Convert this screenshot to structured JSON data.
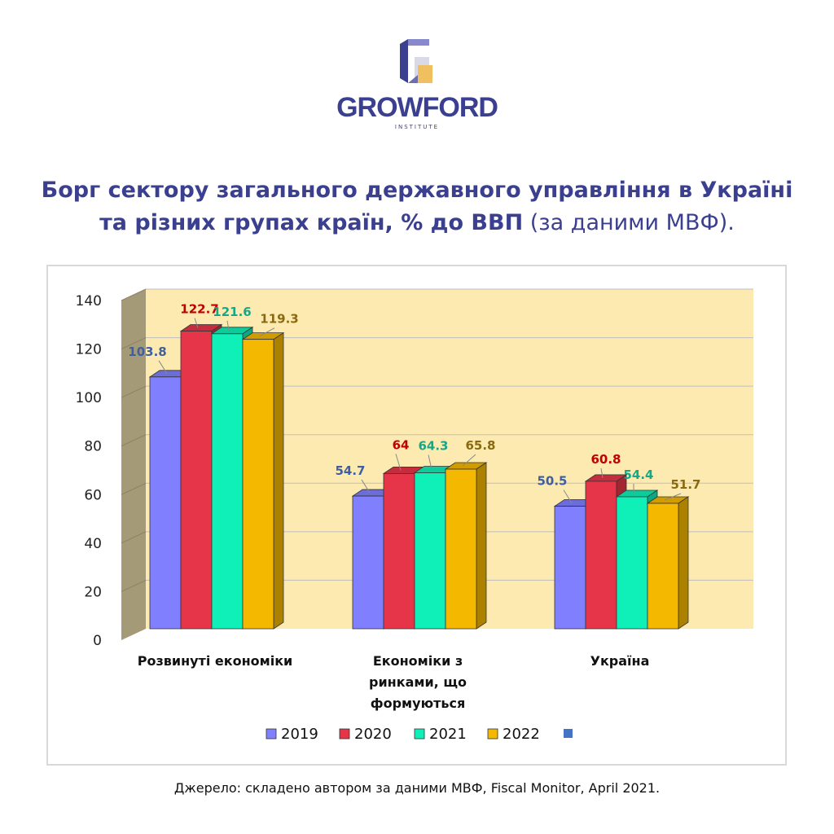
{
  "header": {
    "brand": "GROWFORD",
    "brand_sub": "INSTITUTE"
  },
  "title": {
    "line1": "Борг сектору загального державного управління в Україні",
    "line2_bold": "та різних групах країн, % до ВВП",
    "line2_regular": " (за даними МВФ)."
  },
  "chart_data": {
    "type": "bar",
    "categories": [
      [
        "Розвинуті економіки"
      ],
      [
        "Економіки з",
        "ринками, що",
        "формуються"
      ],
      [
        "Україна"
      ]
    ],
    "series": [
      {
        "name": "2019",
        "values": [
          103.8,
          54.7,
          50.5
        ],
        "labels": [
          "103.8",
          "54.7",
          "50.5"
        ],
        "color": "#8080ff",
        "label_color": "#3f5fa0"
      },
      {
        "name": "2020",
        "values": [
          122.7,
          64,
          60.8
        ],
        "labels": [
          "122.7",
          "64",
          "60.8"
        ],
        "color": "#e63548",
        "label_color": "#c00000"
      },
      {
        "name": "2021",
        "values": [
          121.6,
          64.3,
          54.4
        ],
        "labels": [
          "121.6",
          "64.3",
          "54.4"
        ],
        "color": "#0ff0b8",
        "label_color": "#14a88a"
      },
      {
        "name": "2022",
        "values": [
          119.3,
          65.8,
          51.7
        ],
        "labels": [
          "119.3",
          "65.8",
          "51.7"
        ],
        "color": "#f5b800",
        "label_color": "#8a6a10"
      }
    ],
    "ylim": [
      0,
      140
    ],
    "yticks": [
      "0",
      "20",
      "40",
      "60",
      "80",
      "100",
      "120",
      "140"
    ],
    "grid": true,
    "legend_position": "bottom",
    "legend_extra_marker_color": "#4472c4",
    "wall_color": "#fdeab0",
    "side_wall_color": "#a59a78"
  },
  "source": "Джерело: складено автором за даними МВФ, Fiscal Monitor, April 2021."
}
